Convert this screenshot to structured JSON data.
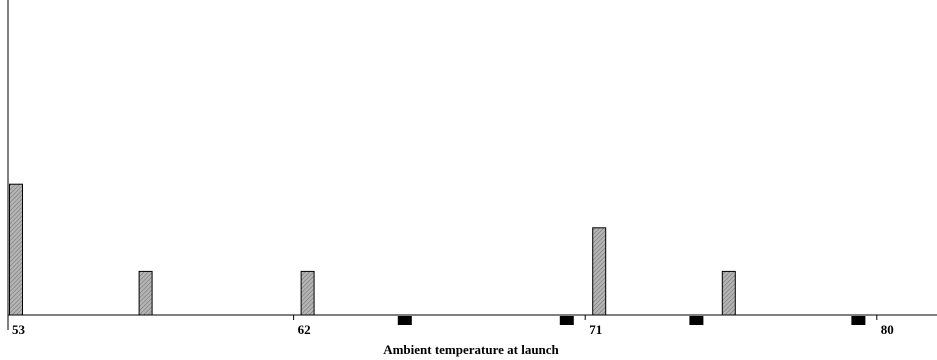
{
  "chart_data": {
    "type": "bar",
    "title": "",
    "xlabel": "Ambient temperature at launch",
    "ylabel": "",
    "x_ticks": [
      "53",
      "62",
      "71",
      "80"
    ],
    "xlim": [
      53,
      80
    ],
    "grid": false,
    "legend": "none",
    "series": [
      {
        "color": "#a8a8a8",
        "pattern": "hatched",
        "points": [
          {
            "x": 53,
            "y": 3
          },
          {
            "x": 57,
            "y": 1
          },
          {
            "x": 62,
            "y": 1
          },
          {
            "x": 71,
            "y": 2
          },
          {
            "x": 75,
            "y": 1
          }
        ]
      },
      {
        "color": "#000000",
        "pattern": "solid",
        "points": [
          {
            "x": 65,
            "y": 1
          },
          {
            "x": 70,
            "y": 1
          },
          {
            "x": 74,
            "y": 1
          },
          {
            "x": 79,
            "y": 1
          }
        ]
      }
    ]
  }
}
